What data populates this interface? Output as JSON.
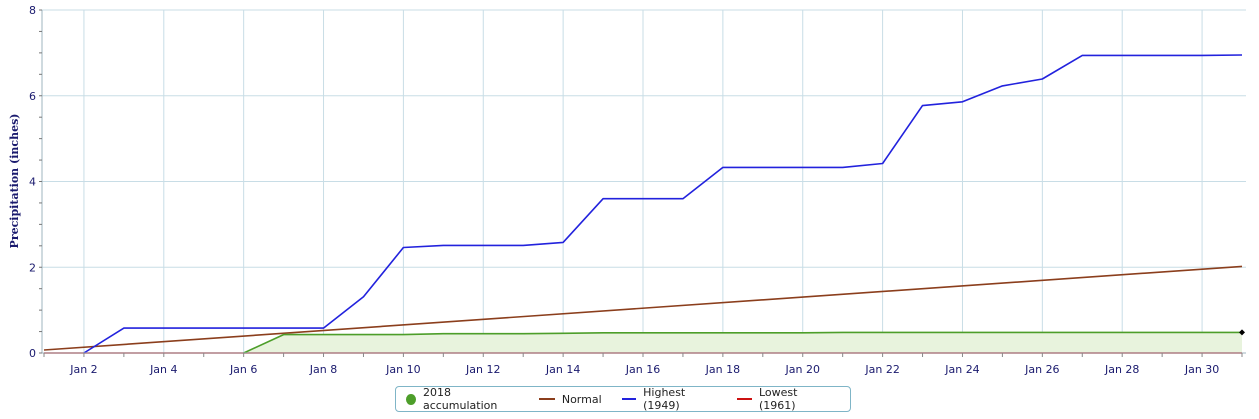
{
  "chart_data": {
    "type": "line",
    "title": "",
    "ylabel": "Precipitation (inches)",
    "xlabel": "",
    "xlim": [
      0.95,
      31.1
    ],
    "ylim": [
      0,
      8
    ],
    "y_ticks": [
      0,
      2,
      4,
      6,
      8
    ],
    "x_ticks": [
      {
        "day": 2,
        "label": "Jan 2"
      },
      {
        "day": 4,
        "label": "Jan 4"
      },
      {
        "day": 6,
        "label": "Jan 6"
      },
      {
        "day": 8,
        "label": "Jan 8"
      },
      {
        "day": 10,
        "label": "Jan 10"
      },
      {
        "day": 12,
        "label": "Jan 12"
      },
      {
        "day": 14,
        "label": "Jan 14"
      },
      {
        "day": 16,
        "label": "Jan 16"
      },
      {
        "day": 18,
        "label": "Jan 18"
      },
      {
        "day": 20,
        "label": "Jan 20"
      },
      {
        "day": 22,
        "label": "Jan 22"
      },
      {
        "day": 24,
        "label": "Jan 24"
      },
      {
        "day": 26,
        "label": "Jan 26"
      },
      {
        "day": 28,
        "label": "Jan 28"
      },
      {
        "day": 30,
        "label": "Jan 30"
      }
    ],
    "x_gridlines_days": [
      2,
      4,
      6,
      8,
      10,
      12,
      14,
      16,
      18,
      20,
      22,
      24,
      26,
      28,
      30
    ],
    "grid": true,
    "legend_position": "bottom-center",
    "series": [
      {
        "name": "Lowest (1961)",
        "type": "line",
        "color": "#cc1111",
        "points": [
          [
            1,
            0
          ],
          [
            31,
            0
          ]
        ]
      },
      {
        "name": "Normal",
        "type": "line",
        "color": "#8b3e1c",
        "points": [
          [
            1,
            0.07
          ],
          [
            31,
            2.02
          ]
        ]
      },
      {
        "name": "2018 accumulation",
        "type": "area",
        "color": "#4d9e2a",
        "fill": "#e8f3dd",
        "points": [
          [
            6,
            0
          ],
          [
            7,
            0.43
          ],
          [
            8,
            0.43
          ],
          [
            9,
            0.43
          ],
          [
            10,
            0.43
          ],
          [
            11,
            0.45
          ],
          [
            12,
            0.45
          ],
          [
            13,
            0.45
          ],
          [
            14,
            0.46
          ],
          [
            15,
            0.47
          ],
          [
            16,
            0.47
          ],
          [
            17,
            0.47
          ],
          [
            18,
            0.47
          ],
          [
            19,
            0.47
          ],
          [
            20,
            0.47
          ],
          [
            21,
            0.48
          ],
          [
            22,
            0.48
          ],
          [
            23,
            0.48
          ],
          [
            24,
            0.48
          ],
          [
            25,
            0.48
          ],
          [
            26,
            0.48
          ],
          [
            27,
            0.48
          ],
          [
            28,
            0.48
          ],
          [
            29,
            0.48
          ],
          [
            30,
            0.48
          ],
          [
            31,
            0.48
          ]
        ]
      },
      {
        "name": "Highest (1949)",
        "type": "line",
        "color": "#2222dd",
        "points": [
          [
            2,
            0
          ],
          [
            3,
            0.58
          ],
          [
            4,
            0.58
          ],
          [
            5,
            0.58
          ],
          [
            6,
            0.58
          ],
          [
            7,
            0.58
          ],
          [
            8,
            0.58
          ],
          [
            9,
            1.31
          ],
          [
            10,
            2.46
          ],
          [
            11,
            2.51
          ],
          [
            12,
            2.51
          ],
          [
            13,
            2.51
          ],
          [
            14,
            2.58
          ],
          [
            15,
            3.6
          ],
          [
            16,
            3.6
          ],
          [
            17,
            3.6
          ],
          [
            18,
            4.33
          ],
          [
            19,
            4.33
          ],
          [
            20,
            4.33
          ],
          [
            21,
            4.33
          ],
          [
            22,
            4.42
          ],
          [
            23,
            5.77
          ],
          [
            24,
            5.86
          ],
          [
            25,
            6.23
          ],
          [
            26,
            6.39
          ],
          [
            27,
            6.94
          ],
          [
            28,
            6.94
          ],
          [
            29,
            6.94
          ],
          [
            30,
            6.94
          ],
          [
            31,
            6.95
          ]
        ]
      }
    ],
    "marker": {
      "series": "2018 accumulation",
      "day": 31,
      "value": 0.48,
      "color": "#000000"
    }
  },
  "legend": {
    "items": [
      {
        "label": "2018 accumulation",
        "kind": "dot",
        "color": "#4d9e2a"
      },
      {
        "label": "Normal",
        "kind": "line",
        "color": "#8b3e1c"
      },
      {
        "label": "Highest (1949)",
        "kind": "line",
        "color": "#2222dd"
      },
      {
        "label": "Lowest (1961)",
        "kind": "line",
        "color": "#cc1111"
      }
    ]
  }
}
